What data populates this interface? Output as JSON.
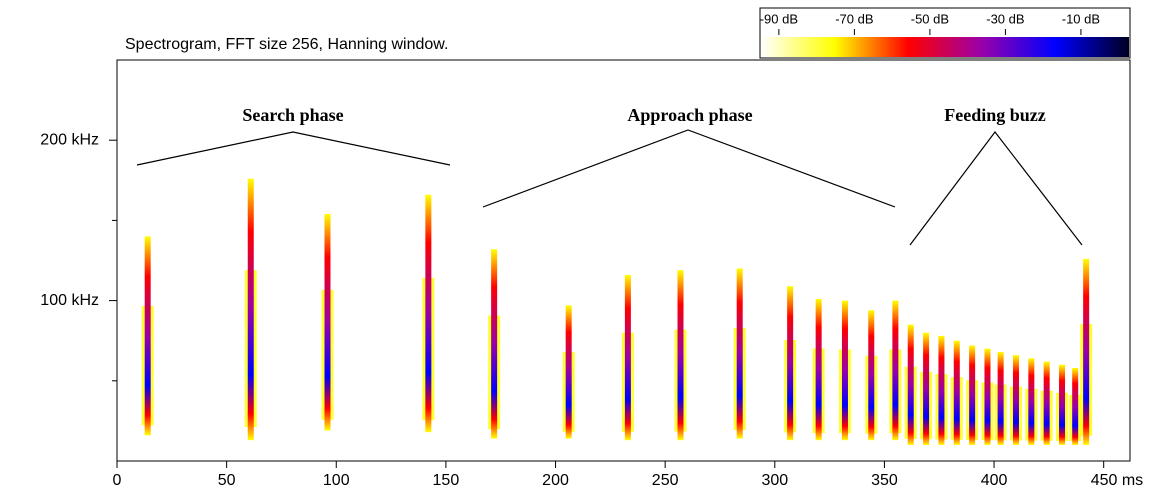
{
  "chart_data": {
    "type": "spectrogram",
    "title": "Spectrogram, FFT size 256, Hanning window.",
    "xlim": [
      0,
      462
    ],
    "xticks": [
      0,
      50,
      100,
      150,
      200,
      250,
      300,
      350,
      400,
      {
        "value": 450,
        "label": "450 ms"
      }
    ],
    "ylim": [
      0,
      250
    ],
    "yticks": [
      {
        "value": 100,
        "label": "100 kHz"
      },
      {
        "value": 200,
        "label": "200 kHz"
      }
    ],
    "yminorticks": [
      50,
      150
    ],
    "calls": {
      "x": [
        14,
        61,
        96,
        142,
        172,
        206,
        233,
        257,
        284,
        307,
        320,
        332,
        344,
        355,
        362,
        369,
        376,
        383,
        390,
        397,
        403,
        410,
        417,
        424,
        431,
        437,
        442
      ],
      "high": [
        140,
        176,
        154,
        166,
        132,
        97,
        116,
        119,
        120,
        109,
        101,
        100,
        94,
        100,
        85,
        80,
        78,
        75,
        72,
        70,
        68,
        66,
        64,
        62,
        60,
        58,
        126
      ],
      "low": [
        16,
        13,
        19,
        18,
        14,
        14,
        13,
        13,
        14,
        13,
        13,
        13,
        13,
        13,
        10,
        10,
        10,
        10,
        10,
        10,
        10,
        10,
        10,
        10,
        10,
        10,
        10
      ]
    },
    "annotations": [
      "Search phase",
      "Approach phase",
      "Feeding buzz"
    ],
    "colorbar": {
      "lim": [
        -95,
        3
      ],
      "ticks": [
        {
          "value": -90,
          "label": "-90 dB"
        },
        {
          "value": -70,
          "label": "-70 dB"
        },
        {
          "value": -50,
          "label": "-50 dB"
        },
        {
          "value": -30,
          "label": "-30 dB"
        },
        {
          "value": -10,
          "label": "-10 dB"
        }
      ],
      "colormap": [
        "#ffffff",
        "#ffff00",
        "#ff0000",
        "#9900aa",
        "#0000ff",
        "#000022"
      ]
    }
  }
}
